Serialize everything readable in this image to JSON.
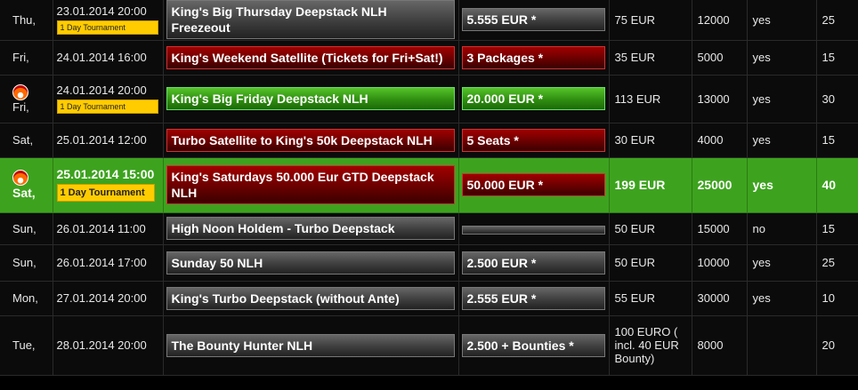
{
  "rows": [
    {
      "day": "Thu,",
      "date": "23.01.2014 20:00",
      "badge": "1 Day Tournament",
      "name": "King's Big Thursday Deepstack NLH Freezeout",
      "name_style": "gray",
      "prize": "5.555 EUR *",
      "prize_style": "gray",
      "buyin": "75 EUR",
      "stack": "12000",
      "rebuy": "yes",
      "blinds": "25"
    },
    {
      "day": "Fri,",
      "date": "24.01.2014 16:00",
      "name": "King's Weekend Satellite (Tickets for Fri+Sat!)",
      "name_style": "red",
      "prize": "3 Packages *",
      "prize_style": "red",
      "buyin": "35 EUR",
      "stack": "5000",
      "rebuy": "yes",
      "blinds": "15"
    },
    {
      "day": "Fri,",
      "fire": true,
      "date": "24.01.2014 20:00",
      "badge": "1 Day Tournament",
      "name": "King's Big Friday Deepstack NLH",
      "name_style": "green",
      "prize": "20.000 EUR *",
      "prize_style": "green",
      "buyin": "113 EUR",
      "stack": "13000",
      "rebuy": "yes",
      "blinds": "30"
    },
    {
      "day": "Sat,",
      "date": "25.01.2014 12:00",
      "name": "Turbo Satellite to King's 50k Deepstack NLH",
      "name_style": "red",
      "prize": "5 Seats *",
      "prize_style": "red",
      "buyin": "30 EUR",
      "stack": "4000",
      "rebuy": "yes",
      "blinds": "15"
    },
    {
      "day": "Sat,",
      "fire": true,
      "highlight": true,
      "date": "25.01.2014 15:00",
      "badge": "1 Day Tournament",
      "name": "King's Saturdays 50.000 Eur GTD Deepstack NLH",
      "name_style": "red",
      "prize": "50.000 EUR *",
      "prize_style": "red",
      "buyin": "199 EUR",
      "stack": "25000",
      "rebuy": "yes",
      "blinds": "40"
    },
    {
      "day": "Sun,",
      "date": "26.01.2014 11:00",
      "name": "High Noon Holdem - Turbo Deepstack",
      "name_style": "gray",
      "prize": "",
      "prize_style": "gray",
      "buyin": "50 EUR",
      "stack": "15000",
      "rebuy": "no",
      "blinds": "15"
    },
    {
      "day": "Sun,",
      "date": "26.01.2014 17:00",
      "name": "Sunday 50 NLH",
      "name_style": "gray",
      "prize": "2.500 EUR *",
      "prize_style": "gray",
      "buyin": "50 EUR",
      "stack": "10000",
      "rebuy": "yes",
      "blinds": "25"
    },
    {
      "day": "Mon,",
      "date": "27.01.2014 20:00",
      "name": "King's Turbo Deepstack (without Ante)",
      "name_style": "gray",
      "prize": "2.555 EUR *",
      "prize_style": "gray",
      "buyin": "55 EUR",
      "stack": "30000",
      "rebuy": "yes",
      "blinds": "10"
    },
    {
      "day": "Tue,",
      "date": "28.01.2014 20:00",
      "name": "The Bounty Hunter NLH",
      "name_style": "gray",
      "prize": "2.500 + Bounties *",
      "prize_style": "gray",
      "buyin": "100 EURO ( incl. 40 EUR Bounty)",
      "stack": "8000",
      "rebuy": "",
      "blinds": "20"
    }
  ]
}
